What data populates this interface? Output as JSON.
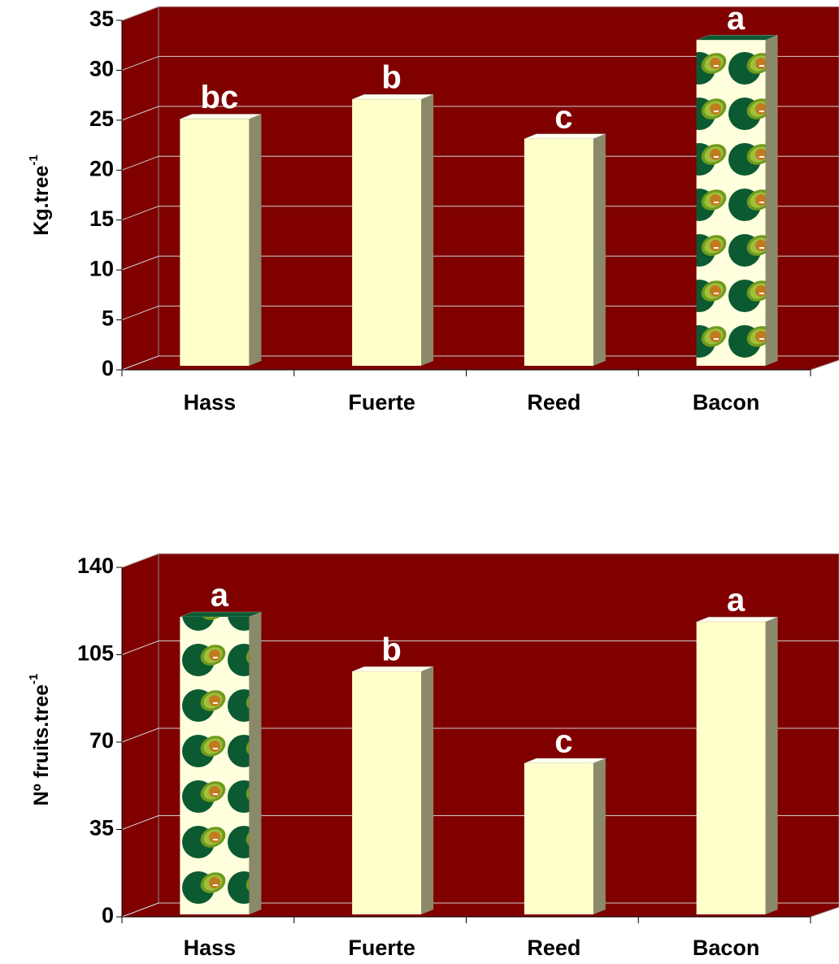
{
  "charts": [
    {
      "chart_data": {
        "type": "bar3d",
        "y_label": "Kg.tree",
        "y_label_sup": "-1",
        "categories": [
          "Hass",
          "Fuerte",
          "Reed",
          "Bacon"
        ],
        "values": [
          25,
          27,
          23,
          33
        ],
        "letters": [
          "bc",
          "b",
          "c",
          "a"
        ],
        "patterned": [
          false,
          false,
          false,
          true
        ],
        "color": "#ffffcc",
        "wall_color": "#800000",
        "ylim": [
          0,
          35
        ],
        "yticks": [
          0,
          5,
          10,
          15,
          20,
          25,
          30,
          35
        ],
        "grid": true
      }
    },
    {
      "chart_data": {
        "type": "bar3d",
        "y_label": "Nº fruits.tree",
        "y_label_sup": "-1",
        "categories": [
          "Hass",
          "Fuerte",
          "Reed",
          "Bacon"
        ],
        "values": [
          120,
          98,
          61,
          118
        ],
        "letters": [
          "a",
          "b",
          "c",
          "a"
        ],
        "patterned": [
          true,
          false,
          false,
          false
        ],
        "color": "#ffffcc",
        "wall_color": "#800000",
        "ylim": [
          0,
          140
        ],
        "yticks": [
          0,
          35,
          70,
          105,
          140
        ],
        "grid": true
      }
    }
  ]
}
